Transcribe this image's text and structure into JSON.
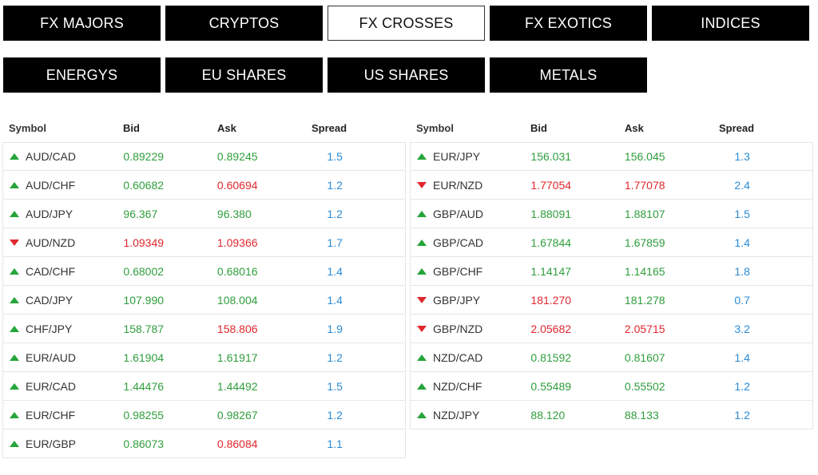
{
  "tabs": [
    [
      {
        "label": "FX MAJORS",
        "active": false
      },
      {
        "label": "CRYPTOS",
        "active": false
      },
      {
        "label": "FX CROSSES",
        "active": true
      },
      {
        "label": "FX EXOTICS",
        "active": false
      },
      {
        "label": "INDICES",
        "active": false
      }
    ],
    [
      {
        "label": "ENERGYS",
        "active": false
      },
      {
        "label": "EU SHARES",
        "active": false
      },
      {
        "label": "US SHARES",
        "active": false
      },
      {
        "label": "METALS",
        "active": false
      }
    ]
  ],
  "columns": {
    "symbol": "Symbol",
    "bid": "Bid",
    "ask": "Ask",
    "spread": "Spread"
  },
  "colors": {
    "up": "#26a53a",
    "down": "#e0272e",
    "spread": "#2a8bd6"
  },
  "left_table": [
    {
      "symbol": "AUD/CAD",
      "dir": "up",
      "bid": "0.89229",
      "bid_dir": "up",
      "ask": "0.89245",
      "ask_dir": "up",
      "spread": "1.5"
    },
    {
      "symbol": "AUD/CHF",
      "dir": "up",
      "bid": "0.60682",
      "bid_dir": "up",
      "ask": "0.60694",
      "ask_dir": "down",
      "spread": "1.2"
    },
    {
      "symbol": "AUD/JPY",
      "dir": "up",
      "bid": "96.367",
      "bid_dir": "up",
      "ask": "96.380",
      "ask_dir": "up",
      "spread": "1.2"
    },
    {
      "symbol": "AUD/NZD",
      "dir": "down",
      "bid": "1.09349",
      "bid_dir": "down",
      "ask": "1.09366",
      "ask_dir": "down",
      "spread": "1.7"
    },
    {
      "symbol": "CAD/CHF",
      "dir": "up",
      "bid": "0.68002",
      "bid_dir": "up",
      "ask": "0.68016",
      "ask_dir": "up",
      "spread": "1.4"
    },
    {
      "symbol": "CAD/JPY",
      "dir": "up",
      "bid": "107.990",
      "bid_dir": "up",
      "ask": "108.004",
      "ask_dir": "up",
      "spread": "1.4"
    },
    {
      "symbol": "CHF/JPY",
      "dir": "up",
      "bid": "158.787",
      "bid_dir": "up",
      "ask": "158.806",
      "ask_dir": "down",
      "spread": "1.9"
    },
    {
      "symbol": "EUR/AUD",
      "dir": "up",
      "bid": "1.61904",
      "bid_dir": "up",
      "ask": "1.61917",
      "ask_dir": "up",
      "spread": "1.2"
    },
    {
      "symbol": "EUR/CAD",
      "dir": "up",
      "bid": "1.44476",
      "bid_dir": "up",
      "ask": "1.44492",
      "ask_dir": "up",
      "spread": "1.5"
    },
    {
      "symbol": "EUR/CHF",
      "dir": "up",
      "bid": "0.98255",
      "bid_dir": "up",
      "ask": "0.98267",
      "ask_dir": "up",
      "spread": "1.2"
    },
    {
      "symbol": "EUR/GBP",
      "dir": "up",
      "bid": "0.86073",
      "bid_dir": "up",
      "ask": "0.86084",
      "ask_dir": "down",
      "spread": "1.1"
    }
  ],
  "right_table": [
    {
      "symbol": "EUR/JPY",
      "dir": "up",
      "bid": "156.031",
      "bid_dir": "up",
      "ask": "156.045",
      "ask_dir": "up",
      "spread": "1.3"
    },
    {
      "symbol": "EUR/NZD",
      "dir": "down",
      "bid": "1.77054",
      "bid_dir": "down",
      "ask": "1.77078",
      "ask_dir": "down",
      "spread": "2.4"
    },
    {
      "symbol": "GBP/AUD",
      "dir": "up",
      "bid": "1.88091",
      "bid_dir": "up",
      "ask": "1.88107",
      "ask_dir": "up",
      "spread": "1.5"
    },
    {
      "symbol": "GBP/CAD",
      "dir": "up",
      "bid": "1.67844",
      "bid_dir": "up",
      "ask": "1.67859",
      "ask_dir": "up",
      "spread": "1.4"
    },
    {
      "symbol": "GBP/CHF",
      "dir": "up",
      "bid": "1.14147",
      "bid_dir": "up",
      "ask": "1.14165",
      "ask_dir": "up",
      "spread": "1.8"
    },
    {
      "symbol": "GBP/JPY",
      "dir": "down",
      "bid": "181.270",
      "bid_dir": "down",
      "ask": "181.278",
      "ask_dir": "up",
      "spread": "0.7"
    },
    {
      "symbol": "GBP/NZD",
      "dir": "down",
      "bid": "2.05682",
      "bid_dir": "down",
      "ask": "2.05715",
      "ask_dir": "down",
      "spread": "3.2"
    },
    {
      "symbol": "NZD/CAD",
      "dir": "up",
      "bid": "0.81592",
      "bid_dir": "up",
      "ask": "0.81607",
      "ask_dir": "up",
      "spread": "1.4"
    },
    {
      "symbol": "NZD/CHF",
      "dir": "up",
      "bid": "0.55489",
      "bid_dir": "up",
      "ask": "0.55502",
      "ask_dir": "up",
      "spread": "1.2"
    },
    {
      "symbol": "NZD/JPY",
      "dir": "up",
      "bid": "88.120",
      "bid_dir": "up",
      "ask": "88.133",
      "ask_dir": "up",
      "spread": "1.2"
    }
  ]
}
